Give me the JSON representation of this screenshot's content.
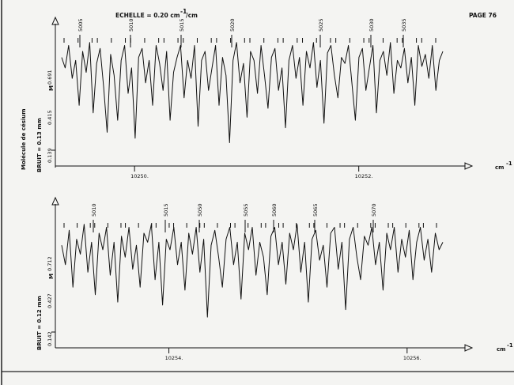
{
  "page": {
    "scale_text": "ECHELLE = 0.20 cm",
    "scale_sup": "-1",
    "scale_unit": "/cm",
    "page_label": "PAGE 76",
    "molecule_label": "Molécule de césium",
    "axis_unit": "cm",
    "axis_unit_sup": "-1",
    "m_marker": "M"
  },
  "colors": {
    "ink": "#111111",
    "paper": "#f4f4f2"
  },
  "chart_data": [
    {
      "type": "line",
      "noise_label": "BRUIT = 0.13 mm",
      "xlabel": "cm-1",
      "x_range": [
        10249.35,
        10252.75
      ],
      "x_ticks": [
        10250.0,
        10252.0
      ],
      "x_tick_labels": [
        "10250.",
        "10252."
      ],
      "y_tick_labels": [
        "0.139",
        "0.415",
        "0.691"
      ],
      "line_numbers": [
        "5005",
        "5010",
        "5015",
        "5020",
        "5025",
        "5030",
        "5035"
      ],
      "line_markers": 35,
      "series": [
        {
          "values": [
            0.62,
            0.55,
            0.7,
            0.48,
            0.6,
            0.3,
            0.66,
            0.52,
            0.72,
            0.25,
            0.58,
            0.68,
            0.42,
            0.12,
            0.64,
            0.5,
            0.2,
            0.6,
            0.7,
            0.38,
            0.55,
            0.08,
            0.62,
            0.68,
            0.45,
            0.6,
            0.3,
            0.7,
            0.58,
            0.4,
            0.66,
            0.2,
            0.52,
            0.62,
            0.7,
            0.35,
            0.6,
            0.48,
            0.7,
            0.16,
            0.6,
            0.66,
            0.4,
            0.55,
            0.7,
            0.3,
            0.62,
            0.5,
            0.05,
            0.6,
            0.72,
            0.45,
            0.58,
            0.22,
            0.66,
            0.6,
            0.38,
            0.7,
            0.5,
            0.28,
            0.62,
            0.68,
            0.4,
            0.55,
            0.15,
            0.6,
            0.7,
            0.48,
            0.62,
            0.3,
            0.66,
            0.55,
            0.72,
            0.42,
            0.6,
            0.18,
            0.65,
            0.7,
            0.5,
            0.35,
            0.62,
            0.58,
            0.7,
            0.45,
            0.2,
            0.62,
            0.68,
            0.4,
            0.55,
            0.7,
            0.25,
            0.6,
            0.66,
            0.5,
            0.72,
            0.38,
            0.6,
            0.55,
            0.68,
            0.45,
            0.62,
            0.3,
            0.7,
            0.56,
            0.64,
            0.48,
            0.7,
            0.4,
            0.6,
            0.66
          ]
        }
      ]
    },
    {
      "type": "line",
      "noise_label": "BRUIT = 0.12 mm",
      "xlabel": "cm-1",
      "x_range": [
        10253.1,
        10256.3
      ],
      "x_ticks": [
        10254.0,
        10256.0
      ],
      "x_tick_labels": [
        "10254.",
        "10256."
      ],
      "y_tick_labels": [
        "0.142",
        "0.427",
        "0.712"
      ],
      "line_numbers": [
        "5010",
        "5015",
        "5050",
        "5055",
        "5060",
        "5065",
        "5070"
      ],
      "line_markers": 38,
      "series": [
        {
          "values": [
            0.58,
            0.45,
            0.68,
            0.3,
            0.62,
            0.52,
            0.72,
            0.4,
            0.6,
            0.25,
            0.66,
            0.55,
            0.7,
            0.38,
            0.6,
            0.2,
            0.64,
            0.5,
            0.7,
            0.42,
            0.58,
            0.3,
            0.66,
            0.6,
            0.72,
            0.35,
            0.6,
            0.18,
            0.62,
            0.55,
            0.7,
            0.45,
            0.6,
            0.28,
            0.66,
            0.52,
            0.7,
            0.4,
            0.62,
            0.1,
            0.58,
            0.68,
            0.5,
            0.3,
            0.62,
            0.7,
            0.45,
            0.6,
            0.22,
            0.66,
            0.55,
            0.7,
            0.38,
            0.6,
            0.5,
            0.25,
            0.64,
            0.7,
            0.45,
            0.6,
            0.32,
            0.66,
            0.55,
            0.72,
            0.4,
            0.6,
            0.2,
            0.62,
            0.68,
            0.48,
            0.58,
            0.3,
            0.66,
            0.7,
            0.42,
            0.6,
            0.15,
            0.62,
            0.7,
            0.5,
            0.35,
            0.64,
            0.58,
            0.7,
            0.45,
            0.6,
            0.28,
            0.66,
            0.55,
            0.7,
            0.4,
            0.62,
            0.5,
            0.68,
            0.35,
            0.6,
            0.7,
            0.48,
            0.62,
            0.4,
            0.66,
            0.55,
            0.6
          ]
        }
      ]
    }
  ]
}
